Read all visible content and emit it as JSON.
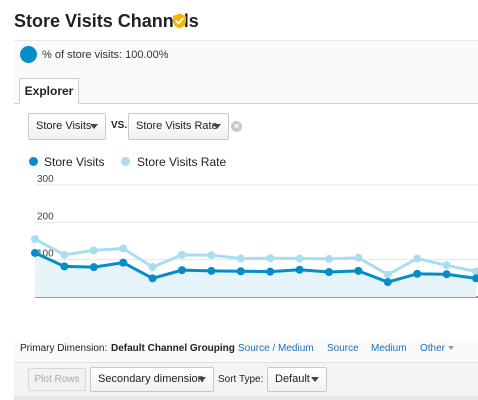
{
  "header": {
    "title": "Store Visits Channels",
    "verified_icon": "shield-check-icon",
    "verified_color": "#f4b400"
  },
  "segment": {
    "label": "% of store visits: 100.00%",
    "color": "#058dc7"
  },
  "tabs": [
    {
      "label": "Explorer",
      "active": true
    }
  ],
  "metric_selector": {
    "metric1": "Store Visits",
    "vs_label": "VS.",
    "metric2": "Store Visits Rate",
    "remove_icon": "close-circle-icon"
  },
  "legend": [
    {
      "label": "Store Visits",
      "color": "#058dc7"
    },
    {
      "label": "Store Visits Rate",
      "color": "#a9ddf0"
    }
  ],
  "chart_data": {
    "type": "line",
    "y_ticks": [
      "100",
      "200",
      "300"
    ],
    "ylim": [
      0,
      300
    ],
    "grid": true,
    "legend_position": "top-left",
    "series": [
      {
        "name": "Store Visits",
        "color": "#058dc7",
        "area": true,
        "values": [
          118,
          82,
          80,
          92,
          50,
          72,
          70,
          69,
          68,
          73,
          67,
          70,
          40,
          62,
          61,
          50
        ]
      },
      {
        "name": "Store Visits Rate",
        "color": "#a9ddf0",
        "area": false,
        "values": [
          155,
          113,
          125,
          130,
          80,
          113,
          112,
          103,
          104,
          103,
          102,
          105,
          60,
          103,
          85,
          68
        ]
      }
    ]
  },
  "dimensions": {
    "label": "Primary Dimension:",
    "active": "Default Channel Grouping",
    "links": [
      "Source / Medium",
      "Source",
      "Medium"
    ],
    "other": "Other"
  },
  "toolbar": {
    "plot_rows": "Plot Rows",
    "secondary_dimension": "Secondary dimension",
    "sort_label": "Sort Type:",
    "sort_value": "Default"
  }
}
